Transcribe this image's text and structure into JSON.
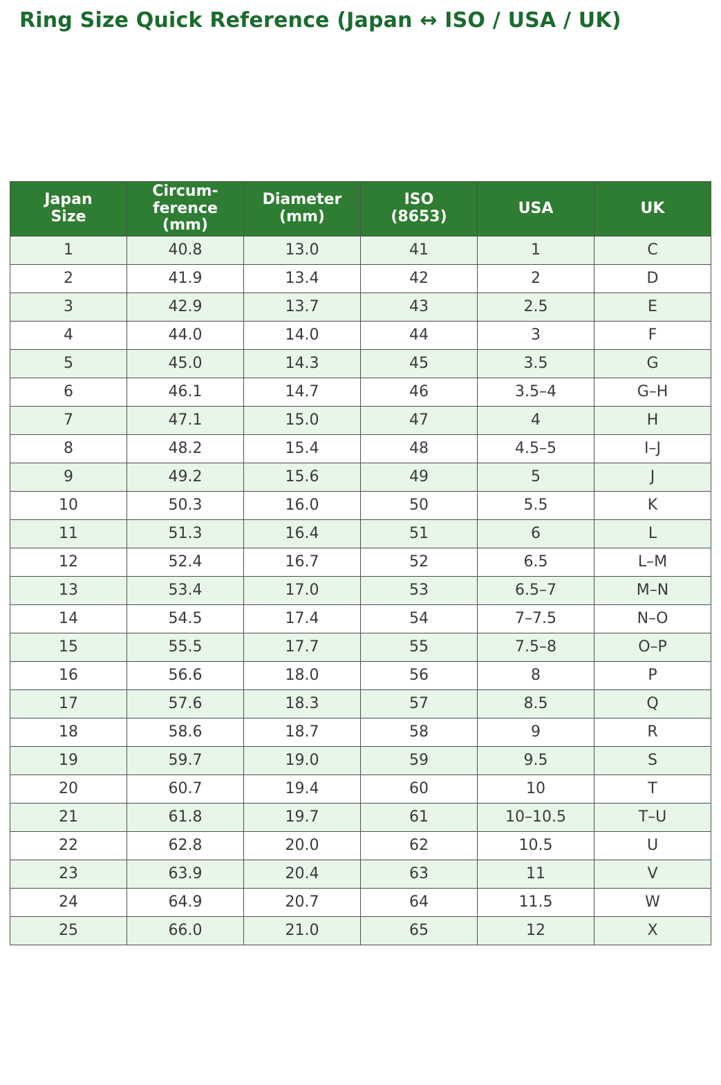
{
  "page": {
    "title": "Ring Size Quick Reference (Japan ↔ ISO / USA / UK)"
  },
  "colors": {
    "title_green": "#1b6b2e",
    "header_bg": "#2e7d32",
    "header_text": "#ffffff",
    "row_alt_bg": "#e8f5e9",
    "row_bg": "#ffffff",
    "border": "#4f4f4f",
    "cell_text": "#3a3a3a"
  },
  "table": {
    "columns": [
      "Japan\nSize",
      "Circum-\nference\n(mm)",
      "Diameter\n(mm)",
      "ISO\n(8653)",
      "USA",
      "UK"
    ],
    "rows": [
      [
        "1",
        "40.8",
        "13.0",
        "41",
        "1",
        "C"
      ],
      [
        "2",
        "41.9",
        "13.4",
        "42",
        "2",
        "D"
      ],
      [
        "3",
        "42.9",
        "13.7",
        "43",
        "2.5",
        "E"
      ],
      [
        "4",
        "44.0",
        "14.0",
        "44",
        "3",
        "F"
      ],
      [
        "5",
        "45.0",
        "14.3",
        "45",
        "3.5",
        "G"
      ],
      [
        "6",
        "46.1",
        "14.7",
        "46",
        "3.5–4",
        "G–H"
      ],
      [
        "7",
        "47.1",
        "15.0",
        "47",
        "4",
        "H"
      ],
      [
        "8",
        "48.2",
        "15.4",
        "48",
        "4.5–5",
        "I–J"
      ],
      [
        "9",
        "49.2",
        "15.6",
        "49",
        "5",
        "J"
      ],
      [
        "10",
        "50.3",
        "16.0",
        "50",
        "5.5",
        "K"
      ],
      [
        "11",
        "51.3",
        "16.4",
        "51",
        "6",
        "L"
      ],
      [
        "12",
        "52.4",
        "16.7",
        "52",
        "6.5",
        "L–M"
      ],
      [
        "13",
        "53.4",
        "17.0",
        "53",
        "6.5–7",
        "M–N"
      ],
      [
        "14",
        "54.5",
        "17.4",
        "54",
        "7–7.5",
        "N–O"
      ],
      [
        "15",
        "55.5",
        "17.7",
        "55",
        "7.5–8",
        "O–P"
      ],
      [
        "16",
        "56.6",
        "18.0",
        "56",
        "8",
        "P"
      ],
      [
        "17",
        "57.6",
        "18.3",
        "57",
        "8.5",
        "Q"
      ],
      [
        "18",
        "58.6",
        "18.7",
        "58",
        "9",
        "R"
      ],
      [
        "19",
        "59.7",
        "19.0",
        "59",
        "9.5",
        "S"
      ],
      [
        "20",
        "60.7",
        "19.4",
        "60",
        "10",
        "T"
      ],
      [
        "21",
        "61.8",
        "19.7",
        "61",
        "10–10.5",
        "T–U"
      ],
      [
        "22",
        "62.8",
        "20.0",
        "62",
        "10.5",
        "U"
      ],
      [
        "23",
        "63.9",
        "20.4",
        "63",
        "11",
        "V"
      ],
      [
        "24",
        "64.9",
        "20.7",
        "64",
        "11.5",
        "W"
      ],
      [
        "25",
        "66.0",
        "21.0",
        "65",
        "12",
        "X"
      ]
    ]
  }
}
